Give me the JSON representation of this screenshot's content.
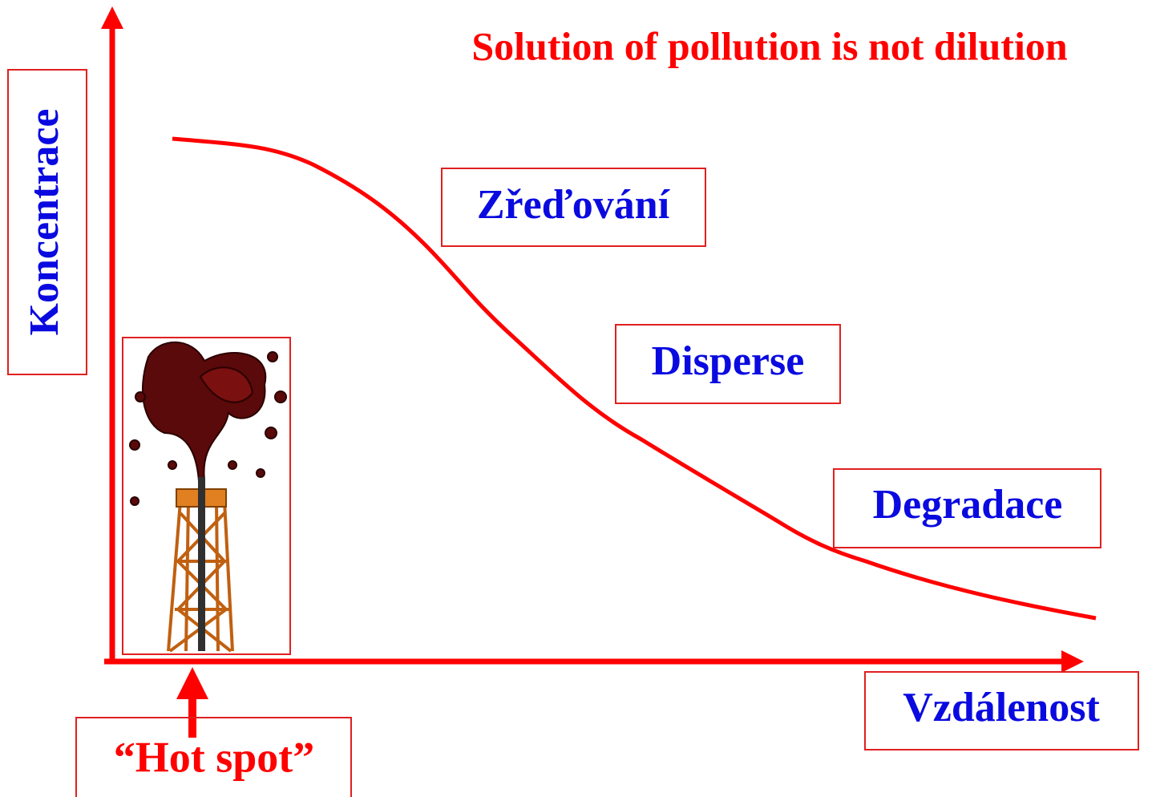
{
  "title": "Solution of pollution is not dilution",
  "y_axis": {
    "label": "Koncentrace"
  },
  "x_axis": {
    "label": "Vzdálenost"
  },
  "stages": [
    {
      "label": "Zřeďování"
    },
    {
      "label": "Disperse"
    },
    {
      "label": "Degradace"
    }
  ],
  "source": {
    "label": "“Hot spot”"
  }
}
